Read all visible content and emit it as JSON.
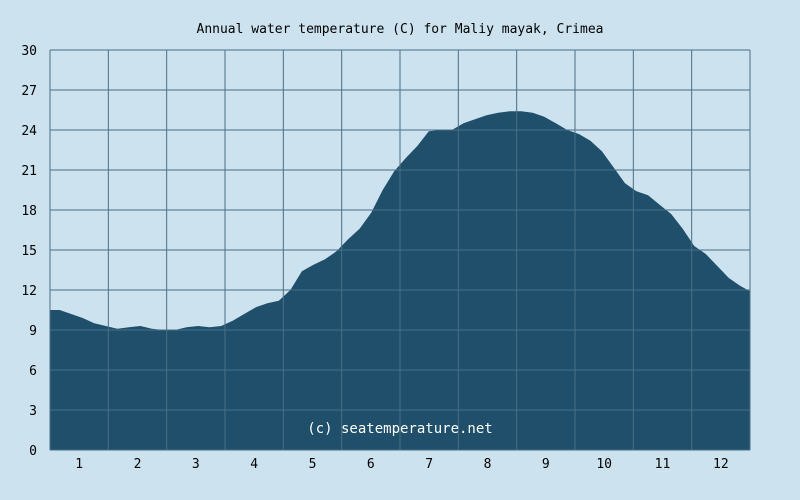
{
  "chart_data": {
    "type": "area",
    "title": "Annual water temperature (C) for Maliy mayak, Crimea",
    "credit": "(c) seatemperature.net",
    "xlabel": "",
    "ylabel": "",
    "ylim": [
      0,
      30
    ],
    "y_ticks": [
      "0",
      "3",
      "6",
      "9",
      "12",
      "15",
      "18",
      "21",
      "24",
      "27",
      "30"
    ],
    "x_ticks": [
      "1",
      "2",
      "3",
      "4",
      "5",
      "6",
      "7",
      "8",
      "9",
      "10",
      "11",
      "12"
    ],
    "xlim": [
      1,
      365
    ],
    "grid": true,
    "colors": {
      "fill": "#1f4f6a",
      "background": "#cce2ee",
      "grid": "#4a6f86"
    },
    "series": [
      {
        "x": [
          1,
          6,
          12,
          18,
          24,
          30,
          36,
          42,
          48,
          54,
          60,
          66,
          72,
          78,
          84,
          90,
          96,
          102,
          108,
          114,
          120,
          126,
          132,
          138,
          144,
          150,
          156,
          162,
          168,
          174,
          180,
          186,
          192,
          198,
          204,
          210,
          216,
          222,
          228,
          234,
          240,
          246,
          252,
          258,
          264,
          270,
          276,
          282,
          288,
          294,
          300,
          306,
          312,
          318,
          324,
          330,
          336,
          342,
          348,
          354,
          360,
          365
        ],
        "values": [
          10.5,
          10.5,
          10.2,
          9.9,
          9.5,
          9.3,
          9.1,
          9.2,
          9.3,
          9.1,
          9.0,
          9.0,
          9.2,
          9.3,
          9.2,
          9.3,
          9.7,
          10.2,
          10.7,
          11.0,
          11.2,
          12.0,
          13.4,
          13.9,
          14.3,
          14.9,
          15.8,
          16.6,
          17.8,
          19.5,
          20.9,
          21.9,
          22.8,
          23.9,
          24.0,
          24.0,
          24.5,
          24.8,
          25.1,
          25.3,
          25.4,
          25.4,
          25.3,
          25.0,
          24.5,
          24.0,
          23.7,
          23.2,
          22.4,
          21.2,
          20.0,
          19.4,
          19.1,
          18.4,
          17.7,
          16.6,
          15.3,
          14.7,
          13.8,
          12.9,
          12.3,
          11.9
        ]
      }
    ]
  }
}
